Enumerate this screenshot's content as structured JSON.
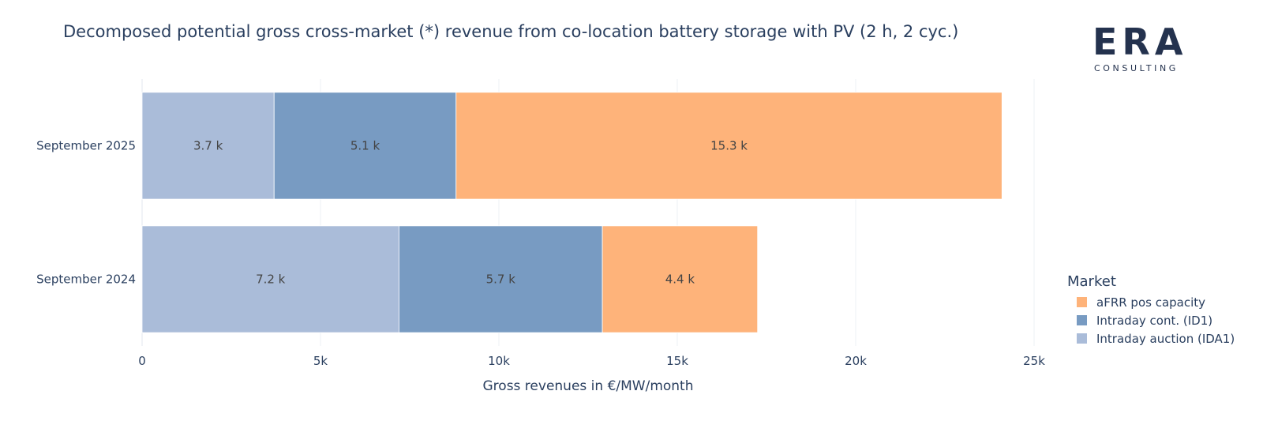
{
  "chart_data": {
    "type": "bar",
    "orientation": "horizontal",
    "stacked": true,
    "title": "Decomposed potential gross cross-market (*) revenue from co-location battery storage with PV (2 h, 2 cyc.)",
    "xlabel": "Gross revenues in €/MW/month",
    "ylabel": "",
    "xlim": [
      0,
      25000
    ],
    "x_ticks": [
      {
        "value": 0,
        "label": "0"
      },
      {
        "value": 5000,
        "label": "5k"
      },
      {
        "value": 10000,
        "label": "10k"
      },
      {
        "value": 15000,
        "label": "15k"
      },
      {
        "value": 20000,
        "label": "20k"
      },
      {
        "value": 25000,
        "label": "25k"
      }
    ],
    "grid": true,
    "categories": [
      "September 2025",
      "September 2024"
    ],
    "series": [
      {
        "name": "Intraday auction (IDA1)",
        "color": "#aabcd9",
        "values": [
          3700,
          7200
        ],
        "labels": [
          "3.7 k",
          "7.2 k"
        ]
      },
      {
        "name": "Intraday cont. (ID1)",
        "color": "#789bc2",
        "values": [
          5100,
          5700
        ],
        "labels": [
          "5.1 k",
          "5.7 k"
        ]
      },
      {
        "name": "aFRR pos capacity",
        "color": "#feb37a",
        "values": [
          15300,
          4350
        ],
        "labels": [
          "15.3 k",
          "4.4 k"
        ]
      }
    ],
    "legend": {
      "title": "Market",
      "position": "right",
      "order": [
        "aFRR pos capacity",
        "Intraday cont. (ID1)",
        "Intraday auction (IDA1)"
      ]
    }
  },
  "logo": {
    "word": "ERA",
    "sub": "CONSULTING"
  }
}
